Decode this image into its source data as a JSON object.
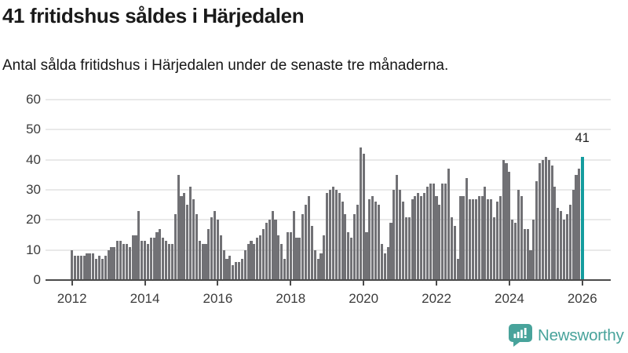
{
  "header": {
    "title": "41 fritidshus såldes i Härjedalen",
    "subtitle": "Antal sålda fritidshus i Härjedalen under de senaste tre månaderna."
  },
  "chart_data": {
    "type": "bar",
    "title": "41 fritidshus såldes i Härjedalen",
    "subtitle": "Antal sålda fritidshus i Härjedalen under de senaste tre månaderna.",
    "x_description": "Monthly bars from January 2012 to January 2026 (rolling three-month sales counts)",
    "x_start": "2012-01",
    "x_end": "2026-01",
    "x_tick_labels": [
      "2012",
      "2014",
      "2016",
      "2018",
      "2020",
      "2022",
      "2024",
      "2026"
    ],
    "y_ticks": [
      0,
      10,
      20,
      30,
      40,
      50,
      60
    ],
    "ylim": [
      0,
      60
    ],
    "grid": true,
    "bar_color": "#717175",
    "highlight_color": "#149c9e",
    "highlight_last_bar": true,
    "highlight_label": "41",
    "values": [
      10,
      8,
      8,
      8,
      8,
      9,
      9,
      9,
      7,
      8,
      7,
      8,
      10,
      11,
      11,
      13,
      13,
      12,
      12,
      11,
      15,
      15,
      23,
      13,
      13,
      12,
      14,
      14,
      16,
      17,
      14,
      13,
      12,
      12,
      22,
      35,
      28,
      29,
      25,
      31,
      27,
      22,
      13,
      12,
      12,
      17,
      21,
      23,
      20,
      15,
      10,
      7,
      8,
      5,
      6,
      6,
      7,
      10,
      12,
      13,
      12,
      14,
      15,
      17,
      19,
      20,
      23,
      20,
      15,
      12,
      7,
      16,
      16,
      23,
      14,
      14,
      22,
      25,
      28,
      18,
      10,
      7,
      9,
      15,
      29,
      30,
      31,
      30,
      29,
      26,
      22,
      16,
      14,
      22,
      25,
      44,
      42,
      16,
      27,
      28,
      26,
      25,
      12,
      9,
      11,
      19,
      30,
      35,
      30,
      26,
      21,
      21,
      27,
      28,
      29,
      28,
      29,
      31,
      32,
      32,
      28,
      25,
      32,
      32,
      37,
      21,
      18,
      7,
      28,
      28,
      34,
      27,
      27,
      27,
      28,
      28,
      31,
      27,
      27,
      21,
      26,
      28,
      40,
      39,
      36,
      20,
      19,
      30,
      28,
      17,
      17,
      10,
      20,
      33,
      39,
      40,
      41,
      40,
      38,
      31,
      24,
      23,
      20,
      22,
      25,
      30,
      35,
      37,
      41
    ]
  },
  "annotation": {
    "last_value_label": "41"
  },
  "footer": {
    "brand": "Newsworthy",
    "brand_color": "#48a39b"
  }
}
